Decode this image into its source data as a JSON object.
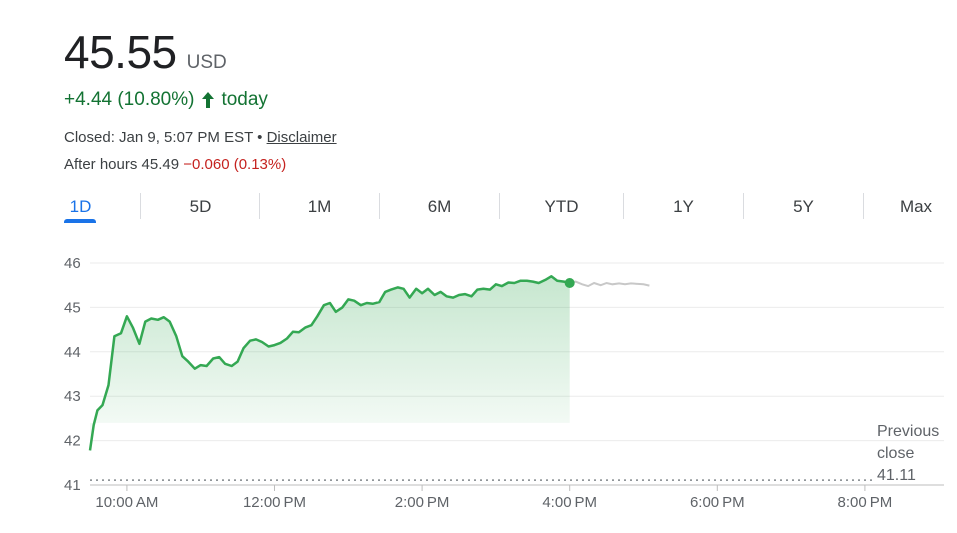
{
  "quote": {
    "price": "45.55",
    "currency": "USD",
    "change": "+4.44 (10.80%)",
    "change_period": "today",
    "status_text": "Closed: Jan 9, 5:07 PM EST • ",
    "disclaimer_label": "Disclaimer",
    "after_hours_label": "After hours 45.49 ",
    "after_hours_change": "−0.060 (0.13%)"
  },
  "tabs": [
    "1D",
    "5D",
    "1M",
    "6M",
    "YTD",
    "1Y",
    "5Y",
    "Max"
  ],
  "active_tab": "1D",
  "colors": {
    "up": "#137333",
    "line": "#34a853",
    "after_hours_line": "#c8c8c8",
    "negative": "#c5221f",
    "accent": "#1a73e8"
  },
  "chart_data": {
    "type": "line",
    "x_unit": "time of day",
    "y_ticks": [
      41,
      42,
      43,
      44,
      45,
      46
    ],
    "x_tick_labels": [
      "10:00 AM",
      "12:00 PM",
      "2:00 PM",
      "4:00 PM",
      "6:00 PM",
      "8:00 PM"
    ],
    "x_tick_hours": [
      10,
      12,
      14,
      16,
      18,
      20
    ],
    "xlim_hours": [
      9.5,
      20.2
    ],
    "ylim": [
      41,
      46
    ],
    "grid": true,
    "previous_close": {
      "value": 41.11,
      "label_lines": [
        "Previous",
        "close",
        "41.11"
      ]
    },
    "series": [
      {
        "segment": "regular",
        "hours": [
          9.5,
          9.55,
          9.6,
          9.67,
          9.75,
          9.83,
          9.92,
          10.0,
          10.08,
          10.17,
          10.25,
          10.33,
          10.42,
          10.5,
          10.58,
          10.67,
          10.75,
          10.83,
          10.92,
          11.0,
          11.08,
          11.17,
          11.25,
          11.33,
          11.42,
          11.5,
          11.58,
          11.67,
          11.75,
          11.83,
          11.92,
          12.0,
          12.08,
          12.17,
          12.25,
          12.33,
          12.42,
          12.5,
          12.58,
          12.67,
          12.75,
          12.83,
          12.92,
          13.0,
          13.08,
          13.17,
          13.25,
          13.33,
          13.42,
          13.5,
          13.58,
          13.67,
          13.75,
          13.83,
          13.92,
          14.0,
          14.08,
          14.17,
          14.25,
          14.33,
          14.42,
          14.5,
          14.58,
          14.67,
          14.75,
          14.83,
          14.92,
          15.0,
          15.08,
          15.17,
          15.25,
          15.33,
          15.42,
          15.5,
          15.58,
          15.67,
          15.75,
          15.83,
          15.92,
          16.0
        ],
        "values": [
          41.78,
          42.35,
          42.68,
          42.8,
          43.25,
          44.35,
          44.42,
          44.8,
          44.55,
          44.18,
          44.68,
          44.75,
          44.72,
          44.78,
          44.68,
          44.35,
          43.9,
          43.78,
          43.62,
          43.7,
          43.68,
          43.85,
          43.88,
          43.73,
          43.68,
          43.78,
          44.08,
          44.25,
          44.28,
          44.22,
          44.12,
          44.15,
          44.2,
          44.3,
          44.45,
          44.44,
          44.55,
          44.6,
          44.8,
          45.05,
          45.1,
          44.9,
          45.0,
          45.18,
          45.15,
          45.05,
          45.1,
          45.08,
          45.12,
          45.35,
          45.4,
          45.45,
          45.42,
          45.22,
          45.42,
          45.32,
          45.42,
          45.28,
          45.35,
          45.25,
          45.22,
          45.28,
          45.3,
          45.25,
          45.4,
          45.42,
          45.4,
          45.52,
          45.48,
          45.56,
          45.55,
          45.6,
          45.6,
          45.58,
          45.55,
          45.62,
          45.7,
          45.6,
          45.58,
          45.55
        ]
      },
      {
        "segment": "after-hours",
        "hours": [
          16.0,
          16.08,
          16.17,
          16.25,
          16.33,
          16.42,
          16.5,
          16.58,
          16.67,
          16.75,
          16.83,
          16.92,
          17.0,
          17.08
        ],
        "values": [
          45.55,
          45.58,
          45.52,
          45.48,
          45.55,
          45.5,
          45.55,
          45.52,
          45.54,
          45.52,
          45.54,
          45.53,
          45.52,
          45.49
        ]
      }
    ]
  }
}
